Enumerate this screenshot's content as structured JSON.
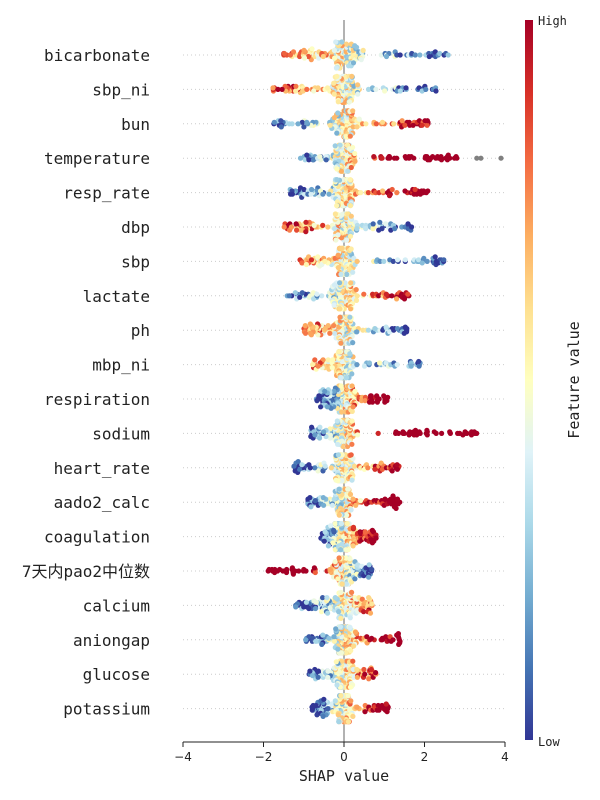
{
  "chart_data": {
    "type": "scatter",
    "subtype": "shap-beeswarm",
    "title": "",
    "xlabel": "SHAP value",
    "ylabel": "",
    "xlim": [
      -4,
      4
    ],
    "xticks": [
      -4,
      -2,
      0,
      2,
      4
    ],
    "xtick_labels": [
      "−4",
      "−2",
      "0",
      "2",
      "4"
    ],
    "grid": "dotted horizontal row guides",
    "colorbar": {
      "title": "Feature value",
      "high_label": "High",
      "low_label": "Low",
      "colors": [
        "#313695",
        "#4575b4",
        "#74add1",
        "#abd9e9",
        "#e0f3f8",
        "#ffffbf",
        "#fee090",
        "#fdae61",
        "#f46d43",
        "#d73027",
        "#a50026"
      ]
    },
    "missing_value_color": "#808080",
    "features": [
      {
        "name": "bicarbonate",
        "min": -1.5,
        "max": 2.7,
        "low_side": "right",
        "spread": 0.9
      },
      {
        "name": "sbp_ni",
        "min": -1.8,
        "max": 2.3,
        "low_side": "right",
        "spread": 0.8
      },
      {
        "name": "bun",
        "min": -1.8,
        "max": 2.1,
        "low_side": "left",
        "spread": 0.8
      },
      {
        "name": "temperature",
        "min": -1.1,
        "max": 2.9,
        "low_side": "left",
        "spread": 0.6,
        "missing_points": [
          3.3,
          3.4,
          3.9
        ]
      },
      {
        "name": "resp_rate",
        "min": -1.4,
        "max": 2.1,
        "low_side": "left",
        "spread": 0.7
      },
      {
        "name": "dbp",
        "min": -1.5,
        "max": 1.7,
        "low_side": "right",
        "spread": 0.7
      },
      {
        "name": "sbp",
        "min": -1.1,
        "max": 2.5,
        "low_side": "right",
        "spread": 0.6
      },
      {
        "name": "lactate",
        "min": -1.5,
        "max": 1.7,
        "low_side": "left",
        "spread": 0.7
      },
      {
        "name": "ph",
        "min": -1.0,
        "max": 1.6,
        "low_side": "right",
        "spread": 0.6
      },
      {
        "name": "mbp_ni",
        "min": -0.8,
        "max": 1.9,
        "low_side": "right",
        "spread": 0.5
      },
      {
        "name": "respiration",
        "min": -0.7,
        "max": 1.1,
        "low_side": "left",
        "spread": 0.7
      },
      {
        "name": "sodium",
        "min": -0.9,
        "max": 3.3,
        "low_side": "left",
        "spread": 0.6
      },
      {
        "name": "heart_rate",
        "min": -1.3,
        "max": 1.4,
        "low_side": "left",
        "spread": 0.6
      },
      {
        "name": "aado2_calc",
        "min": -0.9,
        "max": 1.4,
        "low_side": "left",
        "spread": 0.6
      },
      {
        "name": "coagulation",
        "min": -0.6,
        "max": 0.8,
        "low_side": "left",
        "spread": 0.7
      },
      {
        "name": "7天内pao2中位数",
        "min": -1.9,
        "max": 0.7,
        "low_side": "right",
        "spread": 0.7
      },
      {
        "name": "calcium",
        "min": -1.2,
        "max": 0.7,
        "low_side": "left",
        "spread": 0.9
      },
      {
        "name": "aniongap",
        "min": -1.0,
        "max": 1.4,
        "low_side": "left",
        "spread": 0.7
      },
      {
        "name": "glucose",
        "min": -0.9,
        "max": 0.8,
        "low_side": "left",
        "spread": 0.6
      },
      {
        "name": "potassium",
        "min": -0.8,
        "max": 1.1,
        "low_side": "left",
        "spread": 0.5
      }
    ]
  }
}
